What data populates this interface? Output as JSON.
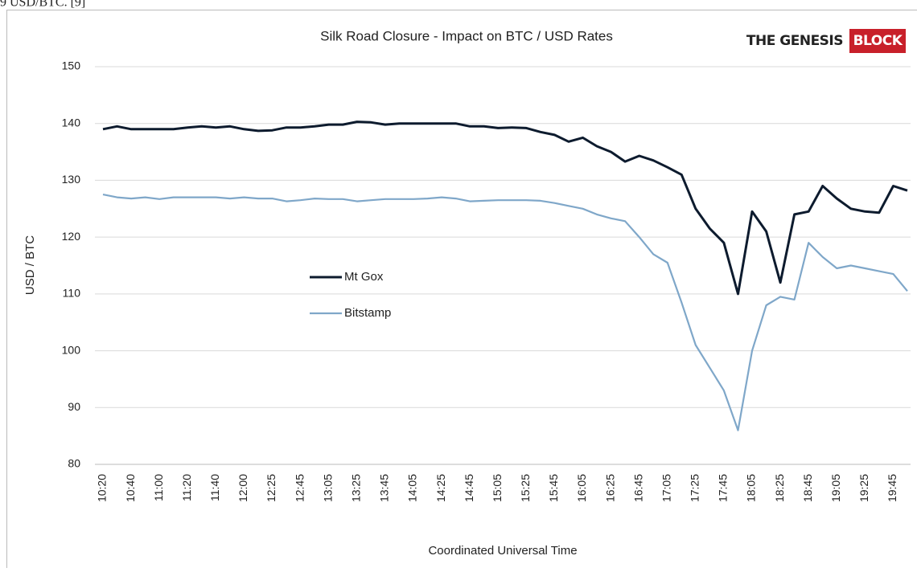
{
  "caption_fragment": "9 USD/BTC. [9]",
  "logo": [
    "THE GENESIS",
    "BLOCK"
  ],
  "chart_data": {
    "type": "line",
    "title": "Silk Road Closure - Impact on BTC / USD Rates",
    "y_label": "USD / BTC",
    "x_label": "Coordinated Universal Time",
    "categories": [
      "10:20",
      null,
      "10:40",
      null,
      "11:00",
      null,
      "11:20",
      null,
      "11:40",
      null,
      "12:00",
      null,
      "12:25",
      null,
      "12:45",
      null,
      "13:05",
      null,
      "13:25",
      null,
      "13:45",
      null,
      "14:05",
      null,
      "14:25",
      null,
      "14:45",
      null,
      "15:05",
      null,
      "15:25",
      null,
      "15:45",
      null,
      "16:05",
      null,
      "16:25",
      null,
      "16:45",
      null,
      "17:05",
      null,
      "17:25",
      null,
      "17:45",
      null,
      "18:05",
      null,
      "18:25",
      null,
      "18:45",
      null,
      "19:05",
      null,
      "19:25",
      null,
      "19:45",
      null
    ],
    "series": [
      {
        "name": "Mt Gox",
        "color": "#0d1b2e",
        "values": [
          139,
          139.5,
          139,
          139,
          139,
          139,
          139.3,
          139.5,
          139.3,
          139.5,
          139,
          138.7,
          138.8,
          139.3,
          139.3,
          139.5,
          139.8,
          139.8,
          140.3,
          140.2,
          139.8,
          140,
          140,
          140,
          140,
          140,
          139.5,
          139.5,
          139.2,
          139.3,
          139.2,
          138.5,
          138,
          136.8,
          137.5,
          136,
          135,
          133.3,
          134.3,
          133.5,
          132.3,
          131,
          125,
          121.5,
          119,
          110,
          124.5,
          121,
          112,
          124,
          124.5,
          129,
          126.8,
          125,
          124.5,
          124.3,
          129,
          128.2
        ]
      },
      {
        "name": "Bitstamp",
        "color": "#7fa7c9",
        "values": [
          127.5,
          127,
          126.8,
          127,
          126.7,
          127,
          127,
          127,
          127,
          126.8,
          127,
          126.8,
          126.8,
          126.3,
          126.5,
          126.8,
          126.7,
          126.7,
          126.3,
          126.5,
          126.7,
          126.7,
          126.7,
          126.8,
          127,
          126.8,
          126.3,
          126.4,
          126.5,
          126.5,
          126.5,
          126.4,
          126,
          125.5,
          125,
          124,
          123.3,
          122.8,
          120,
          117,
          115.5,
          108.5,
          101,
          97,
          93,
          86,
          100,
          108,
          109.5,
          109,
          119,
          116.5,
          114.5,
          115,
          114.5,
          114,
          113.5,
          110.5
        ]
      }
    ],
    "ylim": [
      80,
      150
    ],
    "yticks": [
      80,
      90,
      100,
      110,
      120,
      130,
      140,
      150
    ],
    "grid": true
  }
}
